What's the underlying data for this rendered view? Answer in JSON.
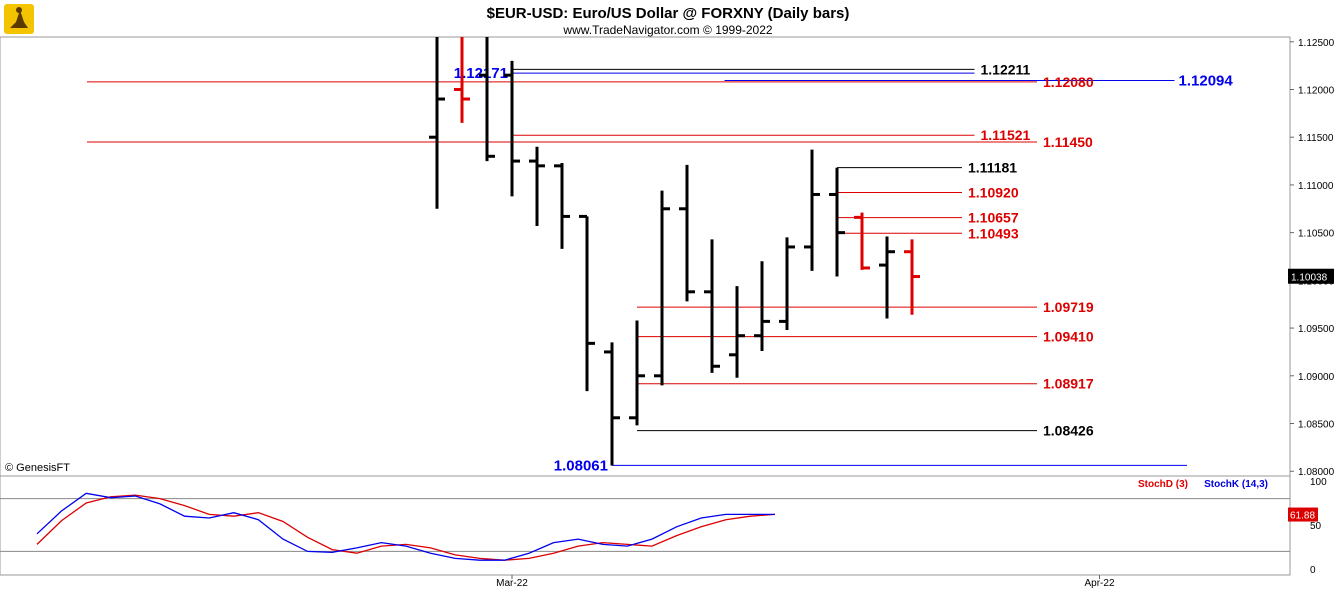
{
  "header": {
    "title": "$EUR-USD:  Euro/US Dollar @ FORXNY  (Daily bars)",
    "subtitle": "www.TradeNavigator.com © 1999-2022"
  },
  "watermark": "© GenesisFT",
  "colors": {
    "bar_up": "#000000",
    "bar_down": "#dd0000",
    "blue_label": "#0000ee",
    "red_label": "#cc0000",
    "stoch_d": "#dd0000",
    "stoch_k": "#0000dd",
    "last_price_bg": "#000000",
    "stoch_last_bg": "#dd0000"
  },
  "chart_data": [
    {
      "type": "ohlc",
      "symbol": "$EUR-USD",
      "ylim": [
        1.0795,
        1.1255
      ],
      "y_ticks": [
        "1.08000",
        "1.08500",
        "1.09000",
        "1.09500",
        "1.10000",
        "1.10500",
        "1.11000",
        "1.11500",
        "1.12000",
        "1.12500"
      ],
      "x_ticks": [
        {
          "label": "Mar-22",
          "index": 3
        },
        {
          "label": "Apr-22",
          "index": 26.5
        }
      ],
      "last_price": "1.10038",
      "bars": [
        {
          "o": 1.115,
          "h": 1.1255,
          "l": 1.1075,
          "c": 1.119,
          "color": "black"
        },
        {
          "o": 1.12,
          "h": 1.1255,
          "l": 1.1165,
          "c": 1.119,
          "color": "red"
        },
        {
          "o": 1.1215,
          "h": 1.1255,
          "l": 1.1125,
          "c": 1.113,
          "color": "black"
        },
        {
          "o": 1.1215,
          "h": 1.123,
          "l": 1.1088,
          "c": 1.1125,
          "color": "black"
        },
        {
          "o": 1.1125,
          "h": 1.114,
          "l": 1.1057,
          "c": 1.112,
          "color": "black"
        },
        {
          "o": 1.112,
          "h": 1.1123,
          "l": 1.1033,
          "c": 1.1067,
          "color": "black"
        },
        {
          "o": 1.1067,
          "h": 1.1067,
          "l": 1.0884,
          "c": 1.0934,
          "color": "black"
        },
        {
          "o": 1.0925,
          "h": 1.0935,
          "l": 1.0806,
          "c": 1.0856,
          "color": "black"
        },
        {
          "o": 1.0856,
          "h": 1.0958,
          "l": 1.0848,
          "c": 1.09,
          "color": "black"
        },
        {
          "o": 1.09,
          "h": 1.1094,
          "l": 1.089,
          "c": 1.1075,
          "color": "black"
        },
        {
          "o": 1.1075,
          "h": 1.1121,
          "l": 1.0978,
          "c": 1.0988,
          "color": "black"
        },
        {
          "o": 1.0988,
          "h": 1.1043,
          "l": 1.0903,
          "c": 1.091,
          "color": "black"
        },
        {
          "o": 1.0922,
          "h": 1.0994,
          "l": 1.0898,
          "c": 1.0942,
          "color": "black"
        },
        {
          "o": 1.0942,
          "h": 1.102,
          "l": 1.0926,
          "c": 1.0957,
          "color": "black"
        },
        {
          "o": 1.0957,
          "h": 1.1045,
          "l": 1.0948,
          "c": 1.1035,
          "color": "black"
        },
        {
          "o": 1.1035,
          "h": 1.1137,
          "l": 1.101,
          "c": 1.109,
          "color": "black"
        },
        {
          "o": 1.109,
          "h": 1.1118,
          "l": 1.1004,
          "c": 1.105,
          "color": "black"
        },
        {
          "o": 1.1066,
          "h": 1.1071,
          "l": 1.1011,
          "c": 1.1013,
          "color": "red"
        },
        {
          "o": 1.1016,
          "h": 1.1046,
          "l": 1.096,
          "c": 1.103,
          "color": "black"
        },
        {
          "o": 1.103,
          "h": 1.1043,
          "l": 1.0964,
          "c": 1.1004,
          "color": "red"
        }
      ],
      "levels": [
        {
          "value": 1.12211,
          "label": "1.12211",
          "color": "black",
          "line_from": 3,
          "line_to": 21.5
        },
        {
          "value": 1.12171,
          "label": "1.12171",
          "color": "blue",
          "line_from": 3,
          "line_to": 21.5,
          "label_side": "left"
        },
        {
          "value": 1.12094,
          "label": "1.12094",
          "color": "blue",
          "line_from": 11.5,
          "line_to": 29.5,
          "label_side": "axis"
        },
        {
          "value": 1.1208,
          "label": "1.12080",
          "color": "red",
          "line_from": -14.0,
          "line_to": 24.0
        },
        {
          "value": 1.11521,
          "label": "1.11521",
          "color": "red",
          "line_from": 3,
          "line_to": 21.5
        },
        {
          "value": 1.1145,
          "label": "1.11450",
          "color": "red",
          "line_from": -14.0,
          "line_to": 24.0
        },
        {
          "value": 1.11181,
          "label": "1.11181",
          "color": "black",
          "line_from": 16,
          "line_to": 21.0
        },
        {
          "value": 1.1092,
          "label": "1.10920",
          "color": "red",
          "line_from": 16,
          "line_to": 21.0
        },
        {
          "value": 1.10657,
          "label": "1.10657",
          "color": "red",
          "line_from": 16,
          "line_to": 21.0
        },
        {
          "value": 1.10493,
          "label": "1.10493",
          "color": "red",
          "line_from": 16,
          "line_to": 21.0
        },
        {
          "value": 1.09719,
          "label": "1.09719",
          "color": "red",
          "line_from": 8,
          "line_to": 24.0
        },
        {
          "value": 1.0941,
          "label": "1.09410",
          "color": "red",
          "line_from": 8,
          "line_to": 24.0
        },
        {
          "value": 1.08917,
          "label": "1.08917",
          "color": "red",
          "line_from": 8,
          "line_to": 24.0
        },
        {
          "value": 1.08426,
          "label": "1.08426",
          "color": "black",
          "line_from": 8,
          "line_to": 24.0
        },
        {
          "value": 1.08061,
          "label": "1.08061",
          "color": "blue",
          "line_from": 7,
          "line_to": 30.0,
          "label_side": "left"
        }
      ]
    },
    {
      "type": "line",
      "ylim": [
        0,
        100
      ],
      "y_ticks": [
        "0",
        "50",
        "100"
      ],
      "reference_lines": [
        20,
        80
      ],
      "last_value": "61.88",
      "legend": [
        "StochD (3)",
        "StochK (14,3)"
      ],
      "series": [
        {
          "name": "StochD (3)",
          "color": "red",
          "values": [
            28,
            55,
            75,
            82,
            84,
            80,
            72,
            62,
            60,
            64,
            54,
            36,
            22,
            18,
            26,
            28,
            24,
            16,
            12,
            10,
            12,
            18,
            26,
            30,
            28,
            26,
            38,
            48,
            56,
            60,
            62
          ]
        },
        {
          "name": "StochK (14,3)",
          "color": "blue",
          "values": [
            40,
            66,
            86,
            81,
            83,
            74,
            60,
            58,
            64,
            56,
            34,
            20,
            19,
            24,
            30,
            26,
            18,
            12,
            10,
            10,
            18,
            30,
            34,
            28,
            26,
            34,
            48,
            58,
            62,
            62,
            62
          ]
        }
      ]
    }
  ]
}
